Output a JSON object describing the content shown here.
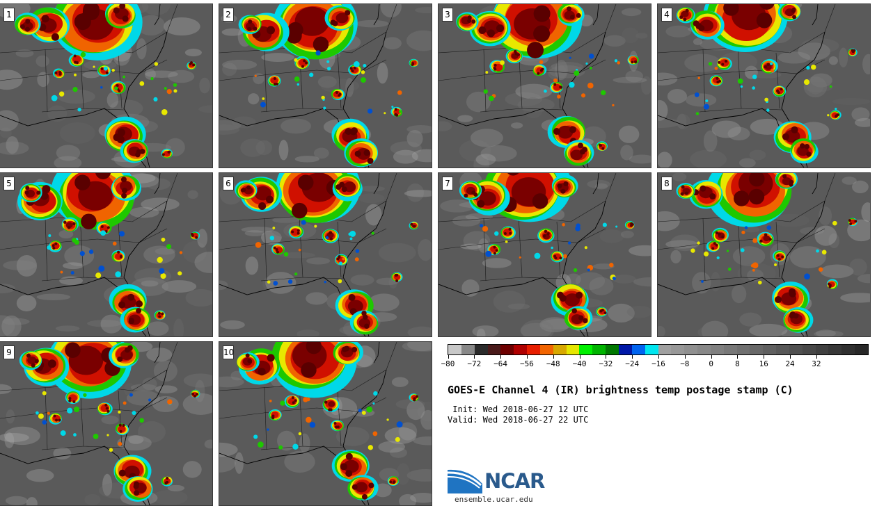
{
  "panels": [
    {
      "label": "1"
    },
    {
      "label": "2"
    },
    {
      "label": "3"
    },
    {
      "label": "4"
    },
    {
      "label": "5"
    },
    {
      "label": "6"
    },
    {
      "label": "7"
    },
    {
      "label": "8"
    },
    {
      "label": "9"
    },
    {
      "label": "10"
    }
  ],
  "colorbar": {
    "colors": [
      "#c8c8c8",
      "#888888",
      "#2b2b2b",
      "#4a1a1a",
      "#6e0000",
      "#b00000",
      "#e81e00",
      "#f26400",
      "#d8a800",
      "#e6e600",
      "#00f000",
      "#00b400",
      "#007800",
      "#0018a8",
      "#0064f0",
      "#00e6f0",
      "#a0a0a0",
      "#989898",
      "#909090",
      "#888888",
      "#808080",
      "#787878",
      "#707070",
      "#686868",
      "#606060",
      "#585858",
      "#505050",
      "#484848",
      "#404040",
      "#383838",
      "#303030",
      "#282828"
    ],
    "tick_labels": [
      "−80",
      "−72",
      "−64",
      "−56",
      "−48",
      "−40",
      "−32",
      "−24",
      "−16",
      "−8",
      "0",
      "8",
      "16",
      "24",
      "32"
    ]
  },
  "title": "GOES-E Channel 4 (IR) brightness temp postage stamp (C)",
  "init": " Init: Wed 2018-06-27 12 UTC",
  "valid": "Valid: Wed 2018-06-27 22 UTC",
  "logo": {
    "text": "NCAR",
    "url": "ensemble.ucar.edu"
  }
}
